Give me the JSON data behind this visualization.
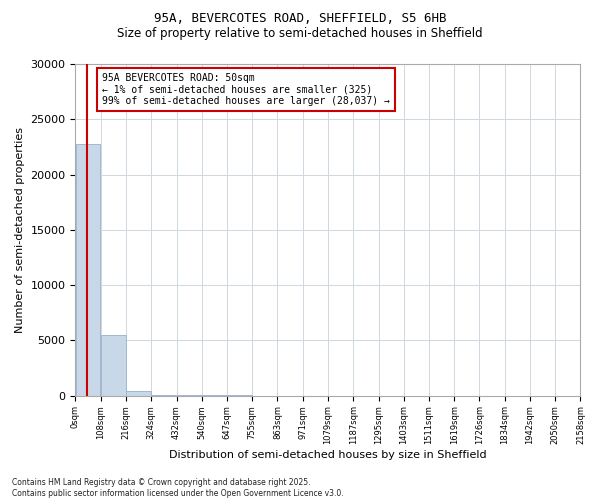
{
  "title": "95A, BEVERCOTES ROAD, SHEFFIELD, S5 6HB",
  "subtitle": "Size of property relative to semi-detached houses in Sheffield",
  "xlabel": "Distribution of semi-detached houses by size in Sheffield",
  "ylabel": "Number of semi-detached properties",
  "bar_values": [
    22800,
    5500,
    400,
    80,
    30,
    15,
    10,
    8,
    5,
    4,
    3,
    2,
    2,
    1,
    1,
    1,
    1,
    1,
    1,
    1
  ],
  "bin_edges": [
    0,
    108,
    216,
    324,
    432,
    540,
    647,
    755,
    863,
    971,
    1079,
    1187,
    1295,
    1403,
    1511,
    1619,
    1726,
    1834,
    1942,
    2050,
    2158
  ],
  "bar_color": "#c8d8e8",
  "bar_edgecolor": "#a0b8d0",
  "property_size": 50,
  "annotation_line1": "95A BEVERCOTES ROAD: 50sqm",
  "annotation_line2": "← 1% of semi-detached houses are smaller (325)",
  "annotation_line3": "99% of semi-detached houses are larger (28,037) →",
  "vline_color": "#cc0000",
  "annotation_box_edgecolor": "#cc0000",
  "ylim": [
    0,
    30000
  ],
  "yticks": [
    0,
    5000,
    10000,
    15000,
    20000,
    25000,
    30000
  ],
  "footer_line1": "Contains HM Land Registry data © Crown copyright and database right 2025.",
  "footer_line2": "Contains public sector information licensed under the Open Government Licence v3.0.",
  "background_color": "#ffffff",
  "grid_color": "#d0d8e0"
}
